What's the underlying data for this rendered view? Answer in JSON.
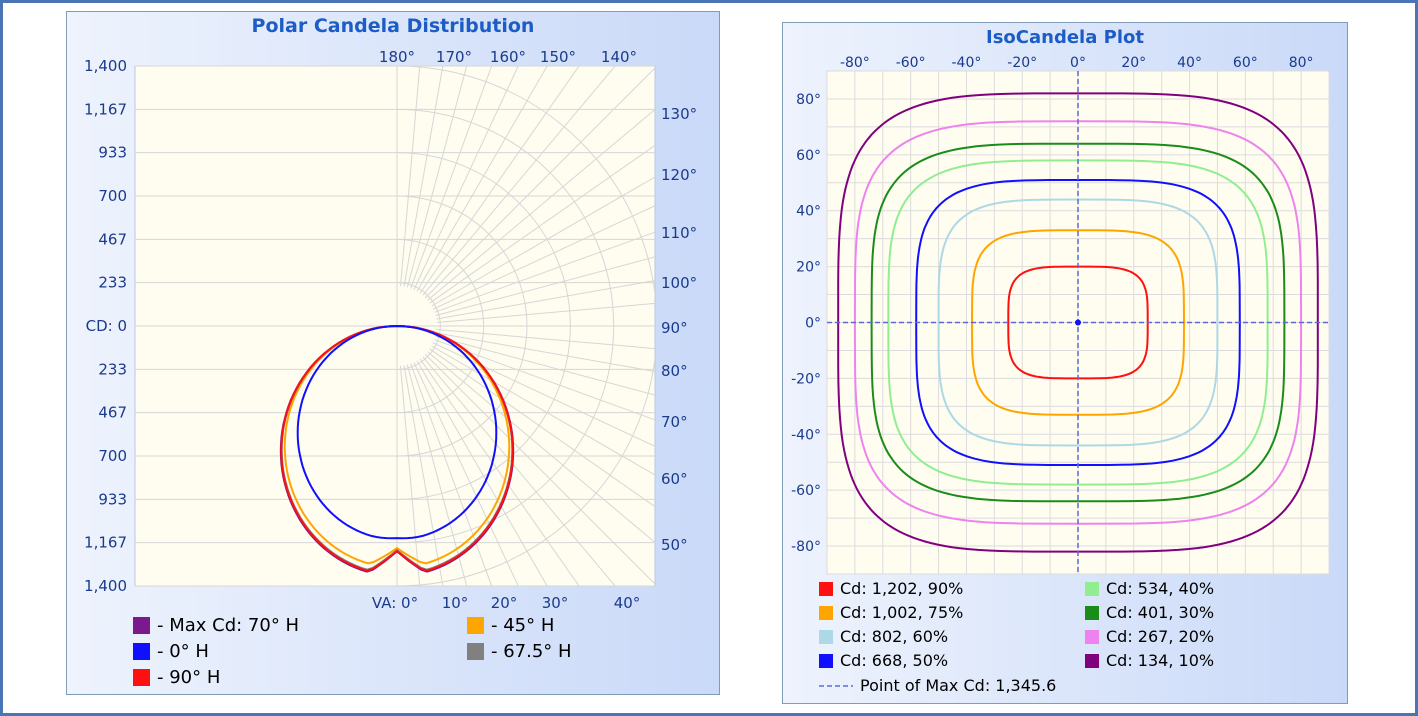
{
  "polar": {
    "title": "Polar Candela Distribution",
    "legend": [
      {
        "label": "- Max Cd: 70° H",
        "color": "#7b1a8c"
      },
      {
        "label": "- 45° H",
        "color": "#ffa500"
      },
      {
        "label": "- 0° H",
        "color": "#1010ff"
      },
      {
        "label": "- 67.5° H",
        "color": "#808080"
      },
      {
        "label": "- 90° H",
        "color": "#ff1010"
      }
    ]
  },
  "iso": {
    "title": "IsoCandela Plot",
    "legend": [
      {
        "label": "Cd: 1,202, 90%",
        "color": "#ff1010"
      },
      {
        "label": "Cd: 534, 40%",
        "color": "#90ee90"
      },
      {
        "label": "Cd: 1,002, 75%",
        "color": "#ffa500"
      },
      {
        "label": "Cd: 401, 30%",
        "color": "#1a8c1a"
      },
      {
        "label": "Cd: 802, 60%",
        "color": "#add8e6"
      },
      {
        "label": "Cd: 267, 20%",
        "color": "#ee82ee"
      },
      {
        "label": "Cd: 668, 50%",
        "color": "#1010ff"
      },
      {
        "label": "Cd: 134, 10%",
        "color": "#800080"
      }
    ],
    "max_point_label": "Point of Max Cd: 1,345.6"
  },
  "chart_data": [
    {
      "type": "polar",
      "title": "Polar Candela Distribution",
      "radial_axis_ticks_upper": [
        "1,400",
        "1,167",
        "933",
        "700",
        "467",
        "233"
      ],
      "radial_axis_center_label": "CD: 0",
      "radial_axis_ticks_lower": [
        "233",
        "467",
        "700",
        "933",
        "1,167",
        "1,400"
      ],
      "rmax": 1400,
      "angle_labels_top": [
        "180°",
        "170°",
        "160°",
        "150°",
        "140°"
      ],
      "angle_labels_right": [
        "130°",
        "120°",
        "110°",
        "100°",
        "90°",
        "80°",
        "70°",
        "60°",
        "50°"
      ],
      "angle_labels_bottom": [
        "VA: 0°",
        "10°",
        "20°",
        "30°",
        "40°"
      ],
      "grid": true,
      "series": [
        {
          "name": "Max Cd: 70° H",
          "color": "#7b1a8c",
          "peak_cd": 1345.6,
          "notch_cd": 1180
        },
        {
          "name": "45° H",
          "color": "#ffa500",
          "peak_cd": 1300,
          "notch_cd": 1170
        },
        {
          "name": "67.5° H",
          "color": "#808080",
          "peak_cd": 1335,
          "notch_cd": 1175
        },
        {
          "name": "90° H",
          "color": "#ff1010",
          "peak_cd": 1340,
          "notch_cd": 1180
        },
        {
          "name": "0° H",
          "color": "#1010ff",
          "peak_cd": 1150,
          "notch_cd": 1140
        }
      ]
    },
    {
      "type": "contour",
      "title": "IsoCandela Plot",
      "x_ticks": [
        -80,
        -60,
        -40,
        -20,
        0,
        20,
        40,
        60,
        80
      ],
      "y_ticks": [
        80,
        60,
        40,
        20,
        0,
        -20,
        -40,
        -60,
        -80
      ],
      "xlim": [
        -90,
        90
      ],
      "ylim": [
        -90,
        90
      ],
      "grid": true,
      "max_point": {
        "x": 0,
        "y": 0,
        "cd": 1345.6
      },
      "contours": [
        {
          "cd": 1202,
          "pct": 90,
          "color": "#ff1010",
          "half_width": 25,
          "half_height": 20
        },
        {
          "cd": 1002,
          "pct": 75,
          "color": "#ffa500",
          "half_width": 38,
          "half_height": 33
        },
        {
          "cd": 802,
          "pct": 60,
          "color": "#add8e6",
          "half_width": 50,
          "half_height": 44
        },
        {
          "cd": 668,
          "pct": 50,
          "color": "#1010ff",
          "half_width": 58,
          "half_height": 51
        },
        {
          "cd": 534,
          "pct": 40,
          "color": "#90ee90",
          "half_width": 68,
          "half_height": 58
        },
        {
          "cd": 401,
          "pct": 30,
          "color": "#1a8c1a",
          "half_width": 74,
          "half_height": 64
        },
        {
          "cd": 267,
          "pct": 20,
          "color": "#ee82ee",
          "half_width": 80,
          "half_height": 72
        },
        {
          "cd": 134,
          "pct": 10,
          "color": "#800080",
          "half_width": 86,
          "half_height": 82
        }
      ]
    }
  ]
}
